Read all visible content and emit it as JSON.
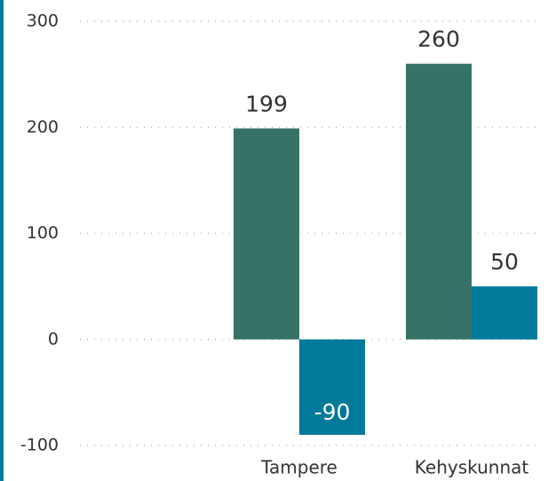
{
  "chart_data": {
    "type": "bar",
    "categories": [
      null,
      "Tampere",
      "Kehyskunnat"
    ],
    "series": [
      {
        "color": "#367366",
        "values": [
          null,
          199,
          260
        ]
      },
      {
        "color": "#00799b",
        "values": [
          null,
          -90,
          50
        ]
      }
    ],
    "ylim": [
      -100,
      300
    ],
    "yticks": [
      -100,
      0,
      100,
      200,
      300
    ],
    "grid": true
  }
}
